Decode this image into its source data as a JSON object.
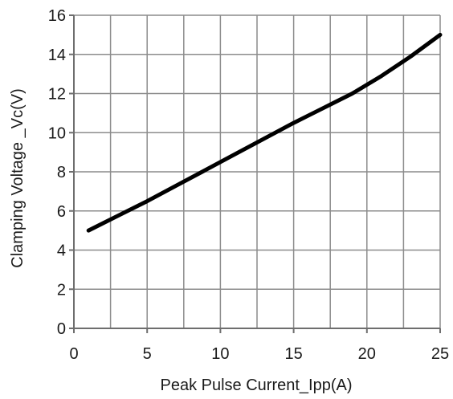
{
  "chart_data": {
    "type": "line",
    "xlabel": "Peak Pulse Current_Ipp(A)",
    "ylabel": "Clamping Voltage _Vc(V)",
    "xlim": [
      0,
      25
    ],
    "ylim": [
      0,
      16
    ],
    "x_ticks": [
      "0",
      "5",
      "10",
      "15",
      "20",
      "25"
    ],
    "y_ticks": [
      "0",
      "2",
      "4",
      "6",
      "8",
      "10",
      "12",
      "14",
      "16"
    ],
    "x_grid_step": 2.5,
    "y_grid_step": 2,
    "grid": true,
    "series": [
      {
        "color": "#000000",
        "x": [
          1,
          3,
          5,
          7,
          9,
          11,
          13,
          15,
          17,
          19,
          21,
          23,
          25
        ],
        "y": [
          5.0,
          5.75,
          6.5,
          7.3,
          8.1,
          8.9,
          9.7,
          10.5,
          11.25,
          12.0,
          12.9,
          13.9,
          15.0
        ]
      }
    ]
  }
}
